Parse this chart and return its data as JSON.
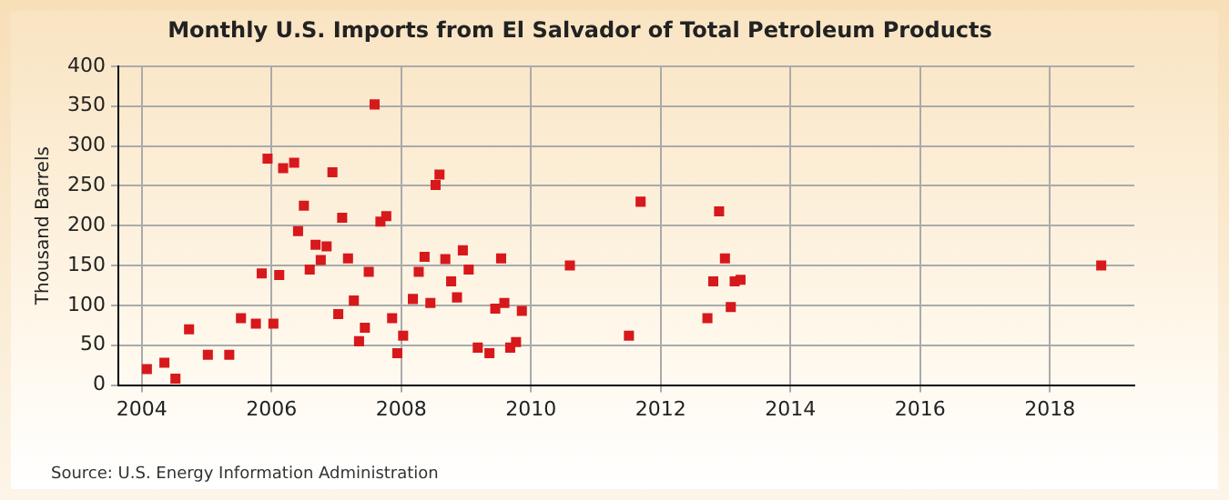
{
  "chart_data": {
    "type": "scatter",
    "title": "Monthly U.S. Imports from El Salvador of Total Petroleum Products",
    "ylabel": "Thousand Barrels",
    "annotations": [
      "Source: U.S. Energy Information Administration"
    ],
    "x": [
      2004.08,
      2004.35,
      2004.52,
      2004.73,
      2005.02,
      2005.35,
      2005.53,
      2005.76,
      2005.85,
      2005.94,
      2006.03,
      2006.12,
      2006.18,
      2006.35,
      2006.41,
      2006.5,
      2006.59,
      2006.68,
      2006.76,
      2006.85,
      2006.94,
      2007.03,
      2007.09,
      2007.18,
      2007.27,
      2007.35,
      2007.44,
      2007.5,
      2007.59,
      2007.68,
      2007.77,
      2007.86,
      2007.94,
      2008.03,
      2008.18,
      2008.27,
      2008.36,
      2008.45,
      2008.53,
      2008.59,
      2008.68,
      2008.77,
      2008.86,
      2008.95,
      2009.04,
      2009.18,
      2009.36,
      2009.45,
      2009.54,
      2009.59,
      2009.68,
      2009.77,
      2009.86,
      2010.6,
      2011.51,
      2011.69,
      2012.72,
      2012.81,
      2012.9,
      2012.99,
      2013.08,
      2013.14,
      2013.23,
      2018.79
    ],
    "series": [
      {
        "color": "#d7191c",
        "values": [
          20,
          28,
          8,
          70,
          38,
          38,
          84,
          77,
          140,
          284,
          77,
          138,
          272,
          279,
          193,
          225,
          145,
          176,
          157,
          174,
          267,
          89,
          210,
          159,
          106,
          55,
          72,
          142,
          352,
          205,
          212,
          84,
          40,
          62,
          108,
          142,
          161,
          103,
          251,
          264,
          158,
          130,
          110,
          169,
          145,
          47,
          40,
          96,
          159,
          103,
          47,
          54,
          93,
          150,
          62,
          230,
          84,
          130,
          218,
          159,
          98,
          130,
          132,
          150
        ]
      }
    ],
    "xlim": [
      2003.64,
      2019.3
    ],
    "xticks": [
      2004,
      2006,
      2008,
      2010,
      2012,
      2014,
      2016,
      2018
    ],
    "ylim": [
      0,
      400
    ],
    "yticks": [
      0,
      50,
      100,
      150,
      200,
      250,
      300,
      350,
      400
    ],
    "grid": true,
    "marker": "square"
  }
}
